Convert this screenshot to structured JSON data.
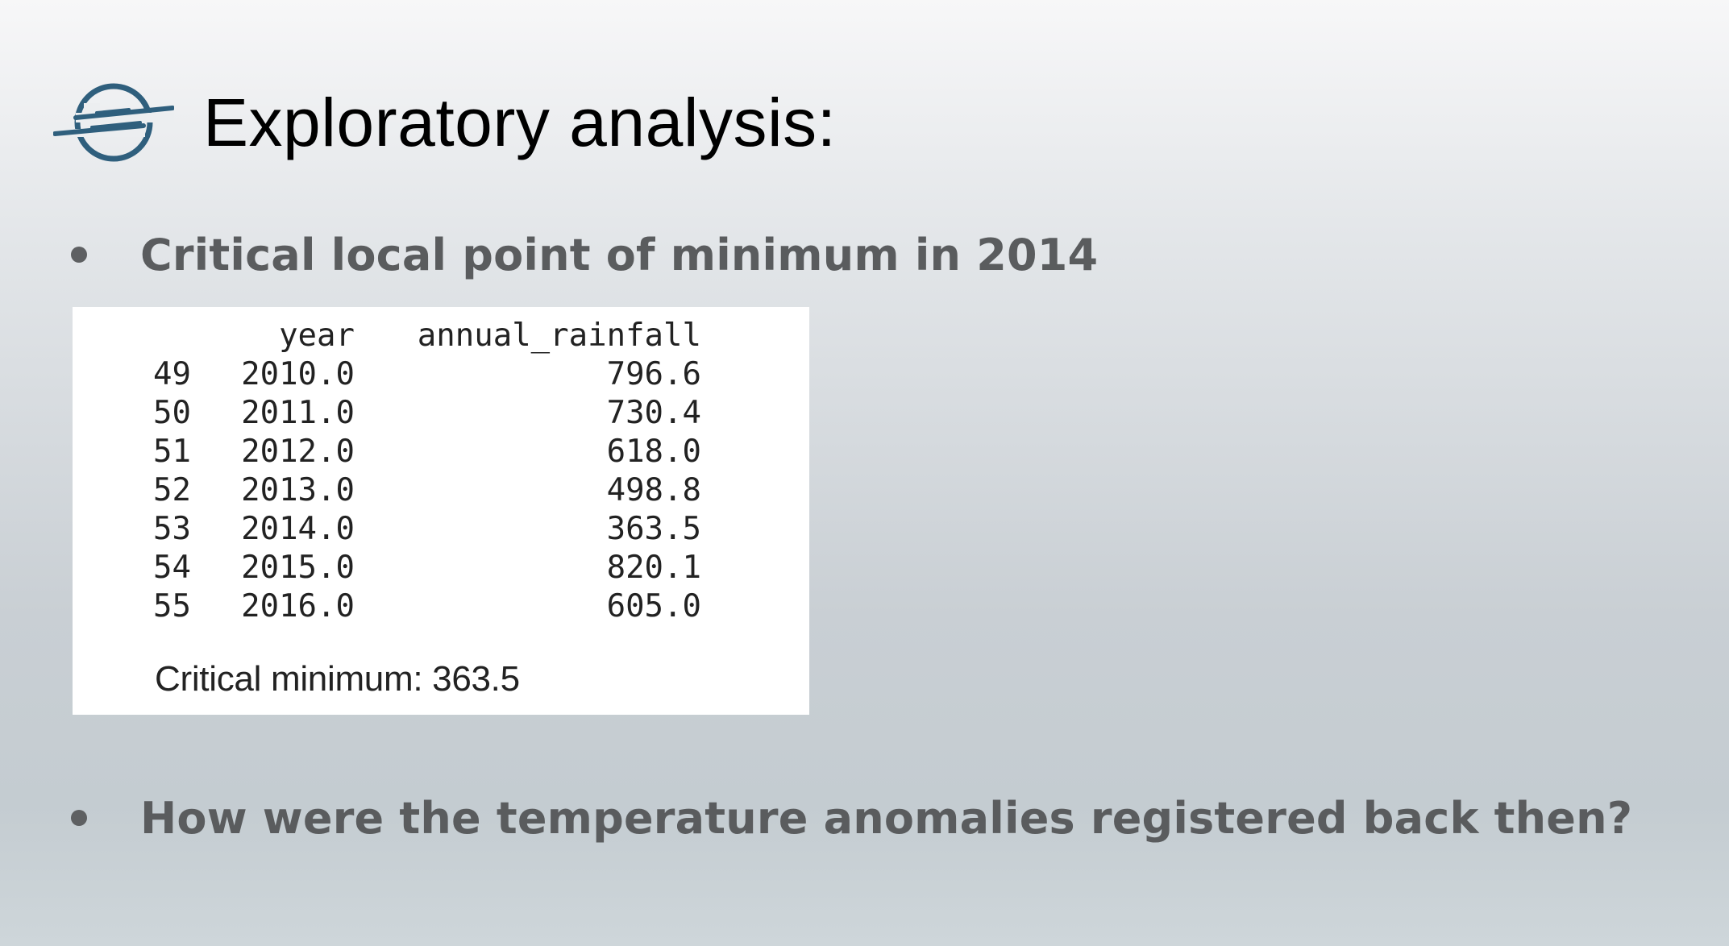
{
  "slide": {
    "title": "Exploratory analysis:",
    "logo_icon": "planet-logo-icon",
    "bullets": [
      "Critical local point of minimum in 2014",
      "How were the temperature anomalies registered back then?"
    ]
  },
  "table": {
    "columns": [
      "",
      "year",
      "annual_rainfall"
    ],
    "rows": [
      [
        "49",
        "2010.0",
        "796.6"
      ],
      [
        "50",
        "2011.0",
        "730.4"
      ],
      [
        "51",
        "2012.0",
        "618.0"
      ],
      [
        "52",
        "2013.0",
        "498.8"
      ],
      [
        "53",
        "2014.0",
        "363.5"
      ],
      [
        "54",
        "2015.0",
        "820.1"
      ],
      [
        "55",
        "2016.0",
        "605.0"
      ]
    ],
    "summary": "Critical minimum: 363.5"
  },
  "colors": {
    "logo": "#2f5f7d",
    "title_text": "#000000",
    "bullet_text": "#5a5c5e",
    "panel_background": "#ffffff"
  }
}
